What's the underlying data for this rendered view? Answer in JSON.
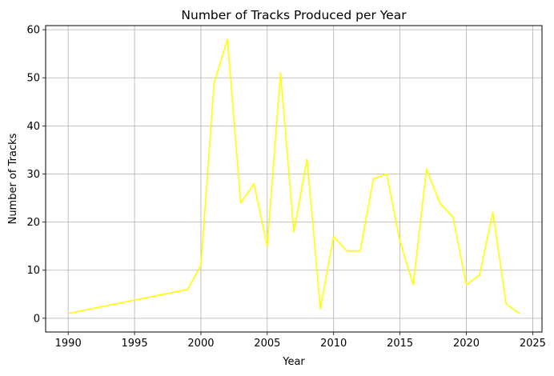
{
  "chart_data": {
    "type": "line",
    "title": "Number of Tracks Produced per Year",
    "xlabel": "Year",
    "ylabel": "Number of Tracks",
    "xlim": [
      1988.3,
      2025.7
    ],
    "ylim": [
      -2.85,
      60.85
    ],
    "xticks": [
      1990,
      1995,
      2000,
      2005,
      2010,
      2015,
      2020,
      2025
    ],
    "yticks": [
      0,
      10,
      20,
      30,
      40,
      50,
      60
    ],
    "grid": true,
    "series": [
      {
        "color": "#ffff00",
        "x": [
          1990,
          1999,
          2000,
          2001,
          2002,
          2003,
          2004,
          2005,
          2006,
          2007,
          2008,
          2009,
          2010,
          2011,
          2012,
          2013,
          2014,
          2015,
          2016,
          2017,
          2018,
          2019,
          2020,
          2021,
          2022,
          2023,
          2024
        ],
        "y": [
          1,
          6,
          11,
          49,
          58,
          24,
          28,
          15,
          51,
          18,
          33,
          2,
          17,
          14,
          14,
          29,
          30,
          16,
          7,
          31,
          24,
          21,
          7,
          9,
          22,
          3,
          1
        ]
      }
    ]
  }
}
